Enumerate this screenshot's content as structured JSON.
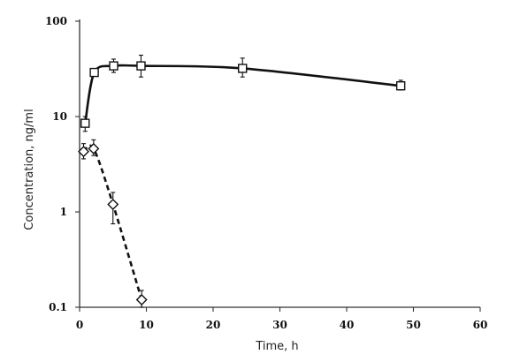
{
  "chart_data": {
    "type": "line",
    "title": "",
    "xlabel": "Time, h",
    "ylabel": "Concentration, ng/ml",
    "x_scale": "linear",
    "y_scale": "log",
    "xlim": [
      0,
      60
    ],
    "ylim": [
      0.1,
      100
    ],
    "x_ticks": [
      "0",
      "10",
      "20",
      "30",
      "40",
      "50",
      "60"
    ],
    "y_ticks": [
      "0.1",
      "1",
      "10",
      "100"
    ],
    "grid": false,
    "legend": "none",
    "series": [
      {
        "marker": "square",
        "line_style": "solid",
        "color": "#111111",
        "x": [
          0.83,
          2.2,
          5.1,
          9.2,
          24.4,
          48.1
        ],
        "y": [
          8.5,
          29,
          34,
          34,
          32,
          21
        ],
        "err_low": [
          7.0,
          27,
          29,
          26,
          26,
          19
        ],
        "err_high": [
          10.0,
          31,
          40,
          44,
          41,
          24
        ]
      },
      {
        "marker": "diamond",
        "line_style": "dashed",
        "color": "#111111",
        "x": [
          0.6,
          2.1,
          5.0,
          9.3
        ],
        "y": [
          4.3,
          4.6,
          1.2,
          0.12
        ],
        "err_low": [
          3.6,
          3.9,
          0.75,
          0.1
        ],
        "err_high": [
          5.2,
          5.7,
          1.6,
          0.15
        ]
      }
    ]
  }
}
